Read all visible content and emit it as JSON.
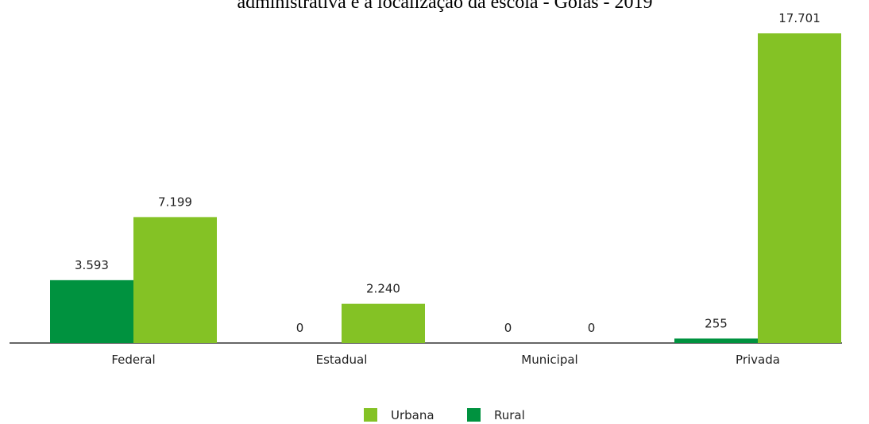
{
  "chart_data": {
    "type": "bar",
    "title": "administrativa e a localização da escola - Goiás - 2019",
    "categories": [
      "Federal",
      "Estadual",
      "Municipal",
      "Privada"
    ],
    "series": [
      {
        "name": "Rural",
        "color": "#00923f",
        "values": [
          3593,
          0,
          0,
          255
        ],
        "value_labels": [
          "3.593",
          "0",
          "0",
          "255"
        ]
      },
      {
        "name": "Urbana",
        "color": "#84c225",
        "values": [
          7199,
          2240,
          0,
          17701
        ],
        "value_labels": [
          "7.199",
          "2.240",
          "0",
          "17.701"
        ]
      }
    ],
    "legend_order": [
      "Urbana",
      "Rural"
    ]
  }
}
